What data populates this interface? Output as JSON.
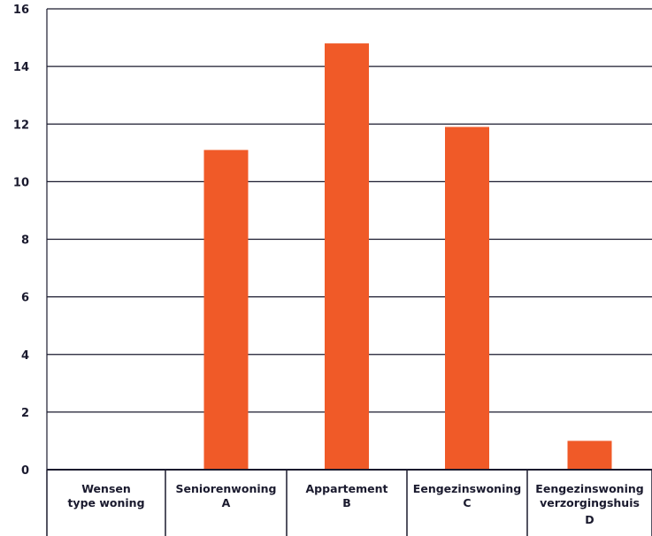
{
  "chart_data": {
    "type": "bar",
    "title": "",
    "xlabel": "",
    "ylabel": "",
    "ylim": [
      0,
      16
    ],
    "yticks": [
      0,
      2,
      4,
      6,
      8,
      10,
      12,
      14,
      16
    ],
    "grid": true,
    "header_cell": [
      "Wensen",
      "type woning"
    ],
    "categories": [
      [
        "Seniorenwoning",
        "A"
      ],
      [
        "Appartement",
        "B"
      ],
      [
        "Eengezinswoning",
        "C"
      ],
      [
        "Eengezinswoning",
        "verzorgingshuis",
        "D"
      ]
    ],
    "values": [
      11.1,
      14.8,
      11.9,
      1.0
    ],
    "colors": {
      "bar": "#f05a28",
      "grid": "#1a1a2e",
      "text": "#1a1a2e"
    }
  }
}
